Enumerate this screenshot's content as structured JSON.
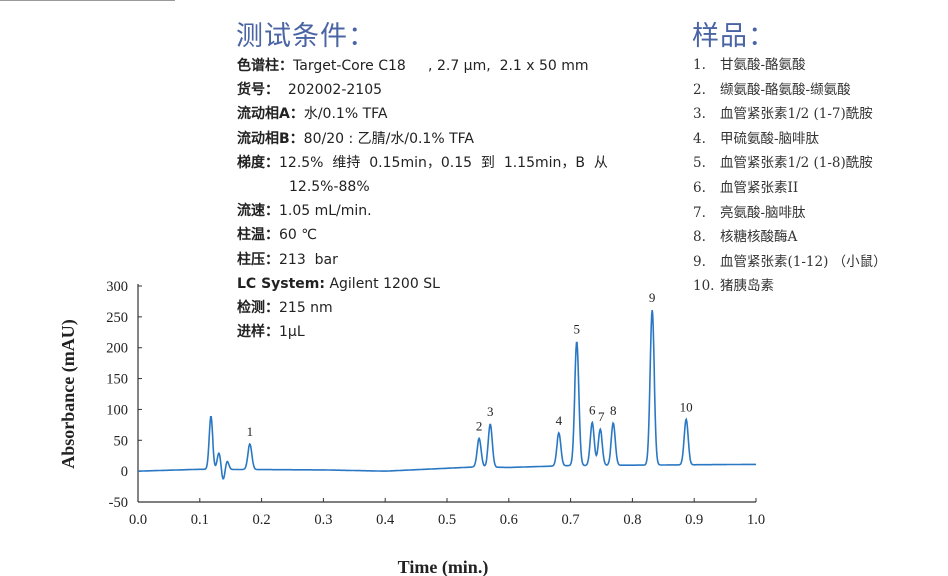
{
  "conditions": {
    "title": "测试条件：",
    "rows": [
      {
        "label": "色谱柱：",
        "value": "Target-Core C18     , 2.7 μm,  2.1 x 50 mm"
      },
      {
        "label": "货号：",
        "value": "  202002-2105"
      },
      {
        "label": "流动相A：",
        "value": "水/0.1% TFA"
      },
      {
        "label": "流动相B：",
        "value": "80/20 : 乙腈/水/0.1% TFA"
      },
      {
        "label": "梯度：",
        "value": "12.5%  维持  0.15min，0.15  到  1.15min，B  从"
      },
      {
        "label": "",
        "value": "12.5%-88%"
      },
      {
        "label": "流速：",
        "value": "1.05 mL/min."
      },
      {
        "label": "柱温：",
        "value": "60 ℃"
      },
      {
        "label": "柱压：",
        "value": "213  bar"
      },
      {
        "label": "LC System:",
        "value": " Agilent 1200 SL"
      },
      {
        "label": "检测：",
        "value": "215 nm"
      },
      {
        "label": "进样：",
        "value": "1μL"
      }
    ]
  },
  "samples": {
    "title": "样品：",
    "items": [
      {
        "num": "1.",
        "name": "甘氨酸-酪氨酸"
      },
      {
        "num": "2.",
        "name": "缬氨酸-酪氨酸-缬氨酸"
      },
      {
        "num": "3.",
        "name": "血管紧张素1/2 (1-7)酰胺"
      },
      {
        "num": "4.",
        "name": "甲硫氨酸-脑啡肽"
      },
      {
        "num": "5.",
        "name": "血管紧张素1/2 (1-8)酰胺"
      },
      {
        "num": "6.",
        "name": "血管紧张素II"
      },
      {
        "num": "7.",
        "name": "亮氨酸-脑啡肽"
      },
      {
        "num": "8.",
        "name": "核糖核酸酶A"
      },
      {
        "num": "9.",
        "name": "血管紧张素(1-12) （小鼠）"
      },
      {
        "num": "10.",
        "name": "猪胰岛素"
      }
    ]
  },
  "chart_data": {
    "type": "line",
    "xlabel": "Time (min.)",
    "ylabel": "Absorbance (mAU)",
    "xlim": [
      0.0,
      1.0
    ],
    "ylim": [
      -50,
      300
    ],
    "xticks": [
      "0.0",
      "0.1",
      "0.2",
      "0.3",
      "0.4",
      "0.5",
      "0.6",
      "0.7",
      "0.8",
      "0.9",
      "1.0"
    ],
    "yticks": [
      "300",
      "250",
      "200",
      "150",
      "100",
      "50",
      "0",
      "-50"
    ],
    "grid": false,
    "line_color": "#2a78c4",
    "baseline": [
      [
        0.0,
        0
      ],
      [
        0.1,
        3
      ],
      [
        0.3,
        2
      ],
      [
        0.4,
        0
      ],
      [
        0.55,
        7
      ],
      [
        0.6,
        6
      ],
      [
        0.7,
        9
      ],
      [
        1.0,
        11
      ]
    ],
    "unlabeled_features": [
      {
        "rt": 0.118,
        "height": 89
      },
      {
        "rt": 0.131,
        "height": 30
      },
      {
        "rt": 0.138,
        "height": -18
      },
      {
        "rt": 0.144,
        "height": 17
      }
    ],
    "peaks": [
      {
        "label": "1",
        "rt": 0.181,
        "height": 44
      },
      {
        "label": "2",
        "rt": 0.552,
        "height": 53
      },
      {
        "label": "3",
        "rt": 0.57,
        "height": 76
      },
      {
        "label": "4",
        "rt": 0.681,
        "height": 62
      },
      {
        "label": "5",
        "rt": 0.71,
        "height": 210
      },
      {
        "label": "6",
        "rt": 0.735,
        "height": 79
      },
      {
        "label": "7",
        "rt": 0.748,
        "height": 68
      },
      {
        "label": "8",
        "rt": 0.769,
        "height": 78
      },
      {
        "label": "9",
        "rt": 0.832,
        "height": 261
      },
      {
        "label": "10",
        "rt": 0.887,
        "height": 84
      }
    ]
  }
}
